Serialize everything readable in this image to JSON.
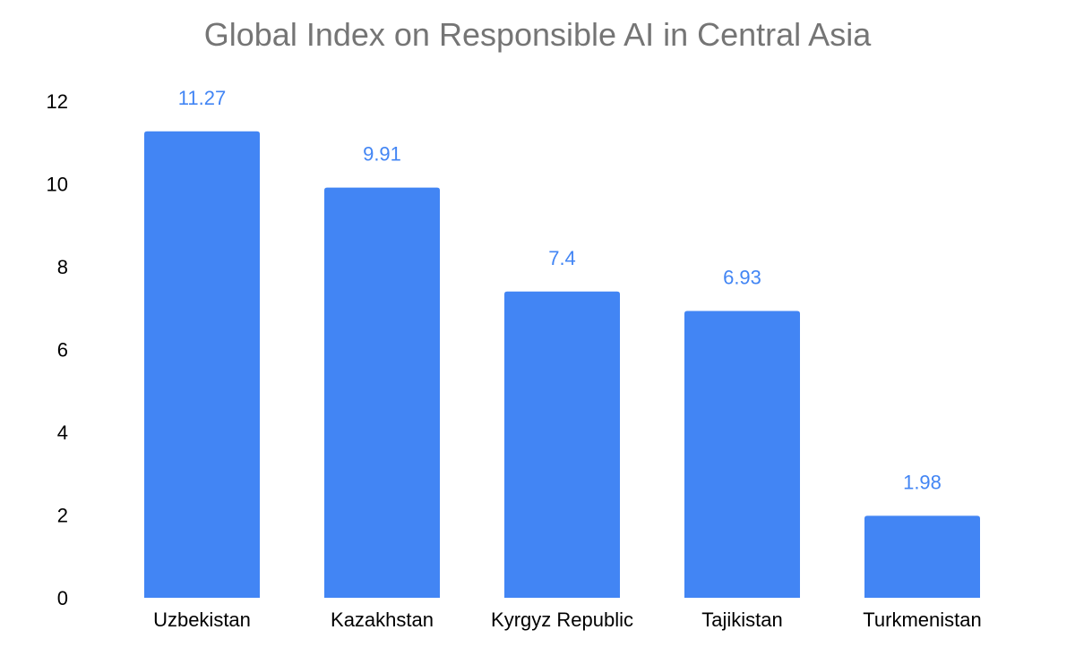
{
  "colors": {
    "bar": "#4285f4",
    "data_label": "#4285f4",
    "title": "#757575"
  },
  "chart_data": {
    "type": "bar",
    "title": "Global Index on Responsible AI in Central Asia",
    "xlabel": "",
    "ylabel": "",
    "categories": [
      "Uzbekistan",
      "Kazakhstan",
      "Kyrgyz Republic",
      "Tajikistan",
      "Turkmenistan"
    ],
    "values": [
      11.27,
      9.91,
      7.4,
      6.93,
      1.98
    ],
    "data_labels": [
      "11.27",
      "9.91",
      "7.4",
      "6.93",
      "1.98"
    ],
    "ylim": [
      0,
      12
    ],
    "yticks": [
      0,
      2,
      4,
      6,
      8,
      10,
      12
    ],
    "grid": false,
    "legend": "none"
  }
}
